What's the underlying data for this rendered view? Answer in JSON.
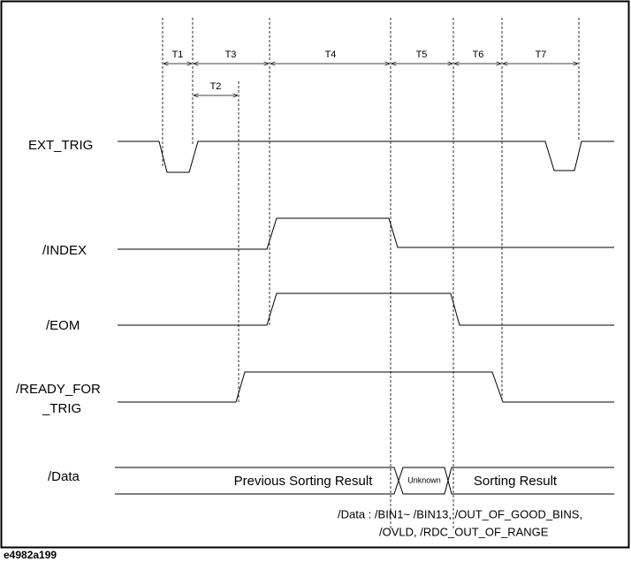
{
  "timings": [
    "T1",
    "T2",
    "T3",
    "T4",
    "T5",
    "T6",
    "T7"
  ],
  "signals": [
    {
      "label": [
        "EXT_TRIG"
      ]
    },
    {
      "label": [
        "/INDEX"
      ]
    },
    {
      "label": [
        "/EOM"
      ]
    },
    {
      "label": [
        "/READY_FOR",
        "_TRIG"
      ]
    }
  ],
  "data_bus": {
    "label": "/Data",
    "segments": [
      "Previous Sorting Result",
      "Unknown",
      "Sorting Result"
    ]
  },
  "note": {
    "lines": [
      "/Data  : /BIN1~ /BIN13, /OUT_OF_GOOD_BINS,",
      "/OVLD, /RDC_OUT_OF_RANGE"
    ]
  },
  "figure_id": "e4982a199"
}
